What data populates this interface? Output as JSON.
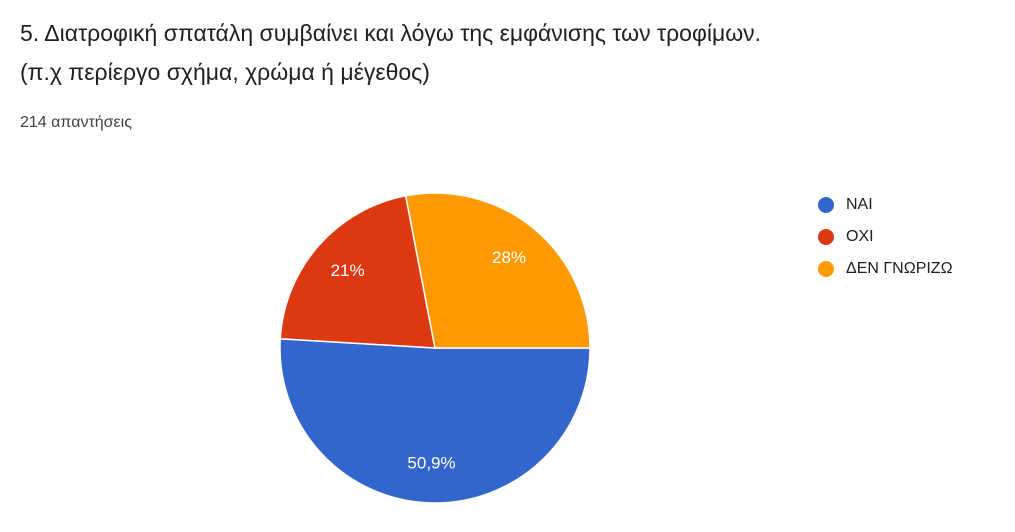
{
  "chart_data": {
    "type": "pie",
    "title": [
      "5. Διατροφική σπατάλη  συμβαίνει και λόγω της εμφάνισης των τροφίμων.",
      "(π.χ περίεργο σχήμα, χρώμα ή μέγεθος)"
    ],
    "subtitle": "214 απαντήσεις",
    "categories": [
      "ΝΑΙ",
      "ΟΧΙ",
      "ΔΕΝ ΓΝΩΡΙΖΩ"
    ],
    "values": [
      50.9,
      21,
      28
    ],
    "value_labels": [
      "50,9%",
      "21%",
      "28%"
    ],
    "colors": [
      "#3366cc",
      "#dc3912",
      "#ff9900"
    ],
    "legend": "right"
  }
}
